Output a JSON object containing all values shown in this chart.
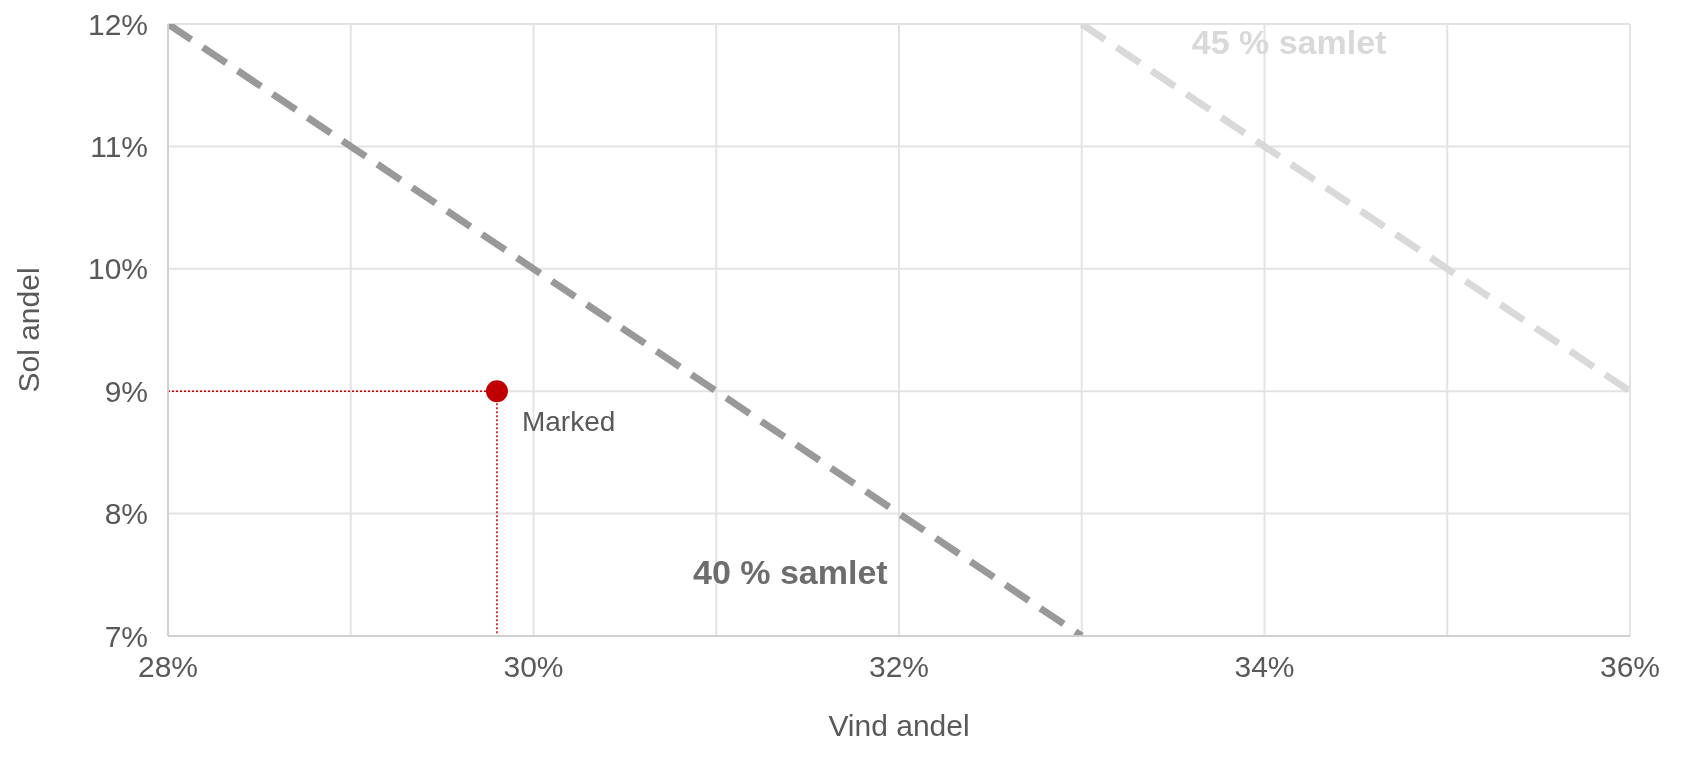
{
  "chart_data": {
    "type": "line",
    "xlabel": "Vind andel",
    "ylabel": "Sol andel",
    "xlim": [
      28,
      36
    ],
    "ylim": [
      7,
      12
    ],
    "xticks": [
      {
        "value": 28,
        "label": "28%"
      },
      {
        "value": 29,
        "label": null
      },
      {
        "value": 30,
        "label": "30%"
      },
      {
        "value": 31,
        "label": null
      },
      {
        "value": 32,
        "label": "32%"
      },
      {
        "value": 33,
        "label": null
      },
      {
        "value": 34,
        "label": "34%"
      },
      {
        "value": 35,
        "label": null
      },
      {
        "value": 36,
        "label": "36%"
      }
    ],
    "yticks": [
      {
        "value": 7,
        "label": "7%"
      },
      {
        "value": 8,
        "label": "8%"
      },
      {
        "value": 9,
        "label": "9%"
      },
      {
        "value": 10,
        "label": "10%"
      },
      {
        "value": 11,
        "label": "11%"
      },
      {
        "value": 12,
        "label": "12%"
      }
    ],
    "grid": true,
    "legend": false,
    "series": [
      {
        "name": "40 % samlet",
        "line_style": "dashed",
        "color": "#999999",
        "x": [
          28,
          33
        ],
        "values": [
          12,
          7
        ]
      },
      {
        "name": "45 % samlet",
        "line_style": "dashed",
        "color": "#d9d9d9",
        "x": [
          33,
          36
        ],
        "values": [
          12,
          9
        ]
      },
      {
        "line_style": "dotted",
        "color": "#c00000",
        "x": [
          28,
          29.8
        ],
        "values": [
          9,
          9
        ]
      },
      {
        "line_style": "dotted",
        "color": "#c00000",
        "x": [
          29.8,
          29.8
        ],
        "values": [
          9,
          7
        ]
      },
      {
        "name": "Marked",
        "type": "scatter",
        "marker": "circle",
        "color": "#c00000",
        "x": [
          29.8
        ],
        "values": [
          9
        ]
      }
    ]
  }
}
